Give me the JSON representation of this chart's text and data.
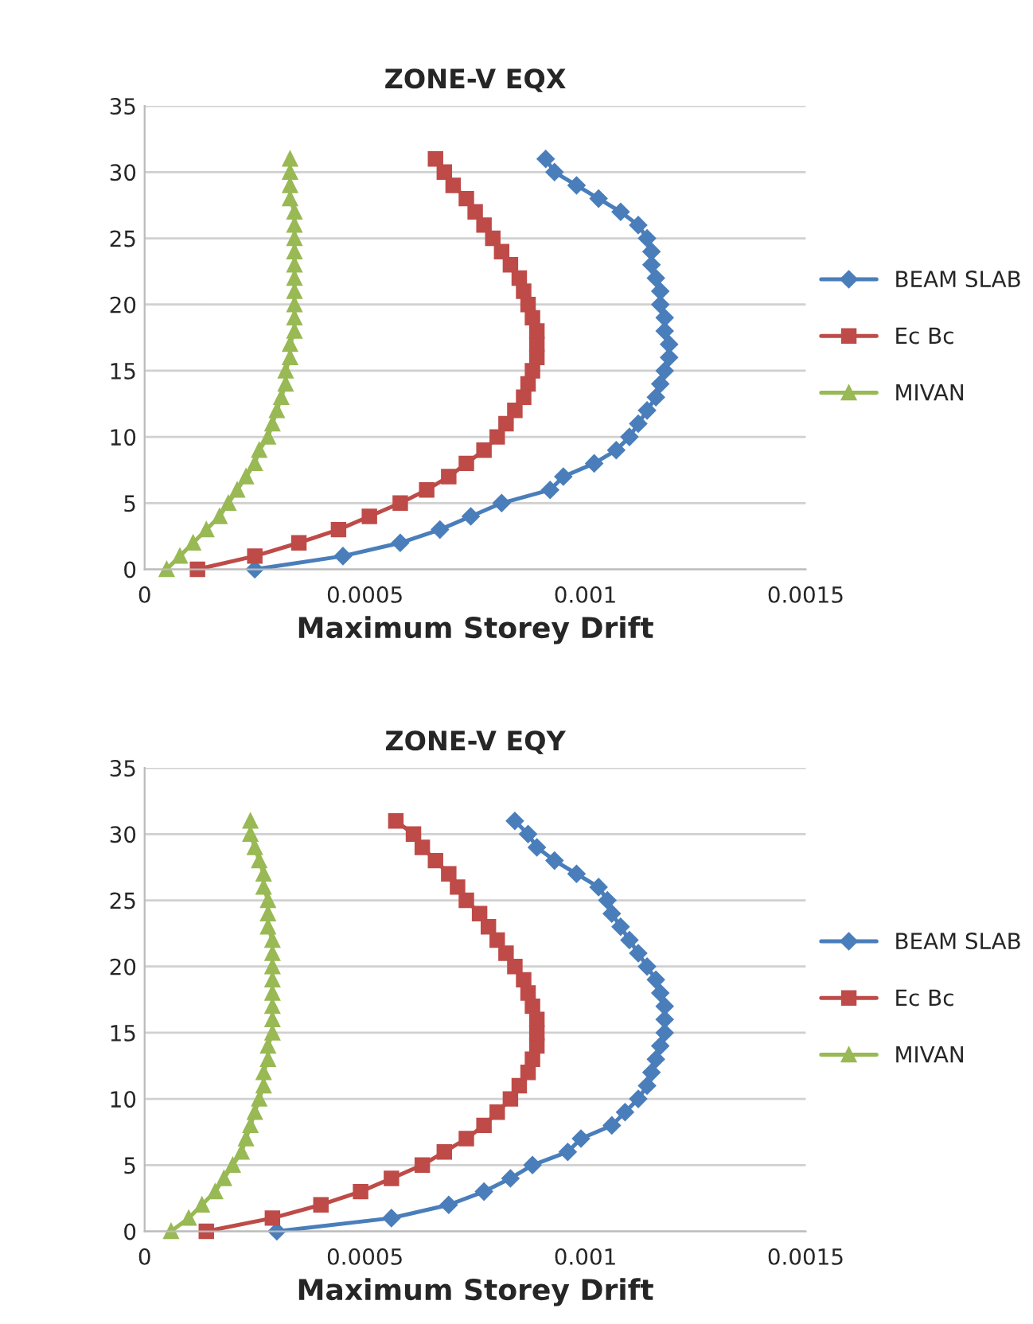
{
  "chart_data": [
    {
      "type": "line",
      "title": "ZONE-V EQX",
      "xlabel": "Maximum Storey Drift",
      "xlim": [
        0,
        0.0015
      ],
      "xticks": [
        0,
        0.0005,
        0.001,
        0.0015
      ],
      "ylim": [
        0,
        35
      ],
      "yticks": [
        0,
        5,
        10,
        15,
        20,
        25,
        30,
        35
      ],
      "grid": "y",
      "legend": "right",
      "series": [
        {
          "name": "BEAM SLAB",
          "color": "#4a7ebb",
          "marker": "diamond",
          "x": [
            0.00025,
            0.00045,
            0.00058,
            0.00067,
            0.00074,
            0.00081,
            0.00092,
            0.00095,
            0.00102,
            0.00107,
            0.0011,
            0.00112,
            0.00114,
            0.00116,
            0.00117,
            0.00118,
            0.00119,
            0.00119,
            0.00118,
            0.00118,
            0.00117,
            0.00117,
            0.00116,
            0.00115,
            0.00115,
            0.00114,
            0.00112,
            0.00108,
            0.00103,
            0.00098,
            0.00093,
            0.00091
          ],
          "values": [
            0,
            1,
            2,
            3,
            4,
            5,
            6,
            7,
            8,
            9,
            10,
            11,
            12,
            13,
            14,
            15,
            16,
            17,
            18,
            19,
            20,
            21,
            22,
            23,
            24,
            25,
            26,
            27,
            28,
            29,
            30,
            31
          ]
        },
        {
          "name": "Ec Bc",
          "color": "#be4b48",
          "marker": "square",
          "x": [
            0.00012,
            0.00025,
            0.00035,
            0.00044,
            0.00051,
            0.00058,
            0.00064,
            0.00069,
            0.00073,
            0.00077,
            0.0008,
            0.00082,
            0.00084,
            0.00086,
            0.00087,
            0.00088,
            0.00089,
            0.00089,
            0.00089,
            0.00088,
            0.00087,
            0.00086,
            0.00085,
            0.00083,
            0.00081,
            0.00079,
            0.00077,
            0.00075,
            0.00073,
            0.0007,
            0.00068,
            0.00066
          ],
          "values": [
            0,
            1,
            2,
            3,
            4,
            5,
            6,
            7,
            8,
            9,
            10,
            11,
            12,
            13,
            14,
            15,
            16,
            17,
            18,
            19,
            20,
            21,
            22,
            23,
            24,
            25,
            26,
            27,
            28,
            29,
            30,
            31
          ]
        },
        {
          "name": "MIVAN",
          "color": "#98b954",
          "marker": "triangle",
          "x": [
            5e-05,
            8e-05,
            0.00011,
            0.00014,
            0.00017,
            0.00019,
            0.00021,
            0.00023,
            0.00025,
            0.00026,
            0.00028,
            0.00029,
            0.0003,
            0.00031,
            0.00032,
            0.00032,
            0.00033,
            0.00033,
            0.00034,
            0.00034,
            0.00034,
            0.00034,
            0.00034,
            0.00034,
            0.00034,
            0.00034,
            0.00034,
            0.00034,
            0.00033,
            0.00033,
            0.00033,
            0.00033
          ],
          "values": [
            0,
            1,
            2,
            3,
            4,
            5,
            6,
            7,
            8,
            9,
            10,
            11,
            12,
            13,
            14,
            15,
            16,
            17,
            18,
            19,
            20,
            21,
            22,
            23,
            24,
            25,
            26,
            27,
            28,
            29,
            30,
            31
          ]
        }
      ]
    },
    {
      "type": "line",
      "title": "ZONE-V EQY",
      "xlabel": "Maximum Storey Drift",
      "xlim": [
        0,
        0.0015
      ],
      "xticks": [
        0,
        0.0005,
        0.001,
        0.0015
      ],
      "ylim": [
        0,
        35
      ],
      "yticks": [
        0,
        5,
        10,
        15,
        20,
        25,
        30,
        35
      ],
      "grid": "y",
      "legend": "right",
      "series": [
        {
          "name": "BEAM SLAB",
          "color": "#4a7ebb",
          "marker": "diamond",
          "x": [
            0.0003,
            0.00056,
            0.00069,
            0.00077,
            0.00083,
            0.00088,
            0.00096,
            0.00099,
            0.00106,
            0.00109,
            0.00112,
            0.00114,
            0.00115,
            0.00116,
            0.00117,
            0.00118,
            0.00118,
            0.00118,
            0.00117,
            0.00116,
            0.00114,
            0.00112,
            0.0011,
            0.00108,
            0.00106,
            0.00105,
            0.00103,
            0.00098,
            0.00093,
            0.00089,
            0.00087,
            0.00084
          ],
          "values": [
            0,
            1,
            2,
            3,
            4,
            5,
            6,
            7,
            8,
            9,
            10,
            11,
            12,
            13,
            14,
            15,
            16,
            17,
            18,
            19,
            20,
            21,
            22,
            23,
            24,
            25,
            26,
            27,
            28,
            29,
            30,
            31
          ]
        },
        {
          "name": "Ec Bc",
          "color": "#be4b48",
          "marker": "square",
          "x": [
            0.00014,
            0.00029,
            0.0004,
            0.00049,
            0.00056,
            0.00063,
            0.00068,
            0.00073,
            0.00077,
            0.0008,
            0.00083,
            0.00085,
            0.00087,
            0.00088,
            0.00089,
            0.00089,
            0.00089,
            0.00088,
            0.00087,
            0.00086,
            0.00084,
            0.00082,
            0.0008,
            0.00078,
            0.00076,
            0.00073,
            0.00071,
            0.00069,
            0.00066,
            0.00063,
            0.00061,
            0.00057
          ],
          "values": [
            0,
            1,
            2,
            3,
            4,
            5,
            6,
            7,
            8,
            9,
            10,
            11,
            12,
            13,
            14,
            15,
            16,
            17,
            18,
            19,
            20,
            21,
            22,
            23,
            24,
            25,
            26,
            27,
            28,
            29,
            30,
            31
          ]
        },
        {
          "name": "MIVAN",
          "color": "#98b954",
          "marker": "triangle",
          "x": [
            6e-05,
            0.0001,
            0.00013,
            0.00016,
            0.00018,
            0.0002,
            0.00022,
            0.00023,
            0.00024,
            0.00025,
            0.00026,
            0.00027,
            0.00027,
            0.00028,
            0.00028,
            0.00029,
            0.00029,
            0.00029,
            0.00029,
            0.00029,
            0.00029,
            0.00029,
            0.00029,
            0.00028,
            0.00028,
            0.00028,
            0.00027,
            0.00027,
            0.00026,
            0.00025,
            0.00024,
            0.00024
          ],
          "values": [
            0,
            1,
            2,
            3,
            4,
            5,
            6,
            7,
            8,
            9,
            10,
            11,
            12,
            13,
            14,
            15,
            16,
            17,
            18,
            19,
            20,
            21,
            22,
            23,
            24,
            25,
            26,
            27,
            28,
            29,
            30,
            31
          ]
        }
      ]
    }
  ]
}
